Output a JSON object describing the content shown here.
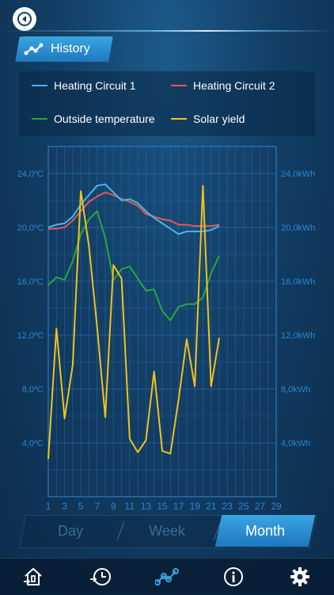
{
  "header": {
    "title": "History"
  },
  "icons": {
    "back": "back-arrow-icon",
    "history": "history-graph-icon",
    "nav": [
      "home-heating-icon",
      "history-clock-icon",
      "graph-icon",
      "info-icon",
      "settings-gear-icon"
    ]
  },
  "legend": [
    {
      "label": "Heating Circuit 1",
      "color": "#4ab3ef"
    },
    {
      "label": "Heating Circuit 2",
      "color": "#e45a52"
    },
    {
      "label": "Outside temperature",
      "color": "#2aa63a"
    },
    {
      "label": "Solar yield",
      "color": "#f1c21b"
    }
  ],
  "period": {
    "options": [
      "Day",
      "Week",
      "Month"
    ],
    "selected": "Month"
  },
  "chart_data": {
    "type": "line",
    "x_ticks": [
      1,
      3,
      5,
      7,
      9,
      11,
      13,
      15,
      17,
      19,
      21,
      23,
      25,
      27,
      29
    ],
    "xlim": [
      1,
      29
    ],
    "left_axis": {
      "unit": "°C",
      "ticks": [
        "24,0ºC",
        "20,0ºC",
        "16,0ºC",
        "12,0ºC",
        "8,0ºC",
        "4,0ºC"
      ],
      "ylim": [
        0,
        26
      ]
    },
    "right_axis": {
      "unit": "kWh",
      "ticks": [
        "24,0kWh",
        "20,0kWh",
        "16,0kWh",
        "12,0kWh",
        "8,0kWh",
        "4,0kWh"
      ],
      "ylim": [
        0,
        26
      ]
    },
    "grid": true,
    "series": [
      {
        "name": "Heating Circuit 1",
        "axis": "left",
        "x": [
          1,
          2,
          3,
          4,
          5,
          6,
          7,
          8,
          9,
          10,
          11,
          12,
          13,
          14,
          15,
          16,
          17,
          18,
          19,
          20,
          21,
          22
        ],
        "values": [
          20.0,
          20.2,
          20.3,
          20.8,
          21.7,
          22.4,
          23.1,
          23.2,
          22.6,
          22.0,
          22.1,
          21.8,
          21.2,
          20.7,
          20.3,
          19.9,
          19.5,
          19.7,
          19.7,
          19.7,
          19.8,
          20.1
        ]
      },
      {
        "name": "Heating Circuit 2",
        "axis": "left",
        "x": [
          1,
          2,
          3,
          4,
          5,
          6,
          7,
          8,
          9,
          10,
          11,
          12,
          13,
          14,
          15,
          16,
          17,
          18,
          19,
          20,
          21,
          22
        ],
        "values": [
          19.9,
          19.9,
          20.0,
          20.5,
          21.2,
          21.9,
          22.3,
          22.6,
          22.4,
          22.1,
          21.9,
          21.6,
          21.0,
          20.8,
          20.6,
          20.5,
          20.2,
          20.2,
          20.1,
          20.1,
          20.1,
          20.2
        ]
      },
      {
        "name": "Outside temperature",
        "axis": "left",
        "x": [
          1,
          2,
          3,
          4,
          5,
          6,
          7,
          8,
          9,
          10,
          11,
          12,
          13,
          14,
          15,
          16,
          17,
          18,
          19,
          20,
          21,
          22
        ],
        "values": [
          15.7,
          16.3,
          16.1,
          17.5,
          19.5,
          20.6,
          21.2,
          19.2,
          16.1,
          16.9,
          17.1,
          16.2,
          15.3,
          15.4,
          13.8,
          13.1,
          14.1,
          14.3,
          14.3,
          14.8,
          16.6,
          17.9
        ]
      },
      {
        "name": "Solar yield",
        "axis": "right",
        "x": [
          1,
          2,
          3,
          4,
          5,
          6,
          7,
          8,
          9,
          10,
          11,
          12,
          13,
          14,
          15,
          16,
          17,
          18,
          19,
          20,
          21,
          22
        ],
        "values": [
          2.8,
          12.5,
          5.8,
          9.8,
          22.7,
          18.6,
          12.6,
          5.9,
          17.2,
          16.2,
          4.3,
          3.3,
          4.2,
          9.3,
          3.4,
          3.2,
          7.2,
          11.7,
          8.2,
          23.1,
          8.2,
          11.8
        ]
      }
    ]
  }
}
